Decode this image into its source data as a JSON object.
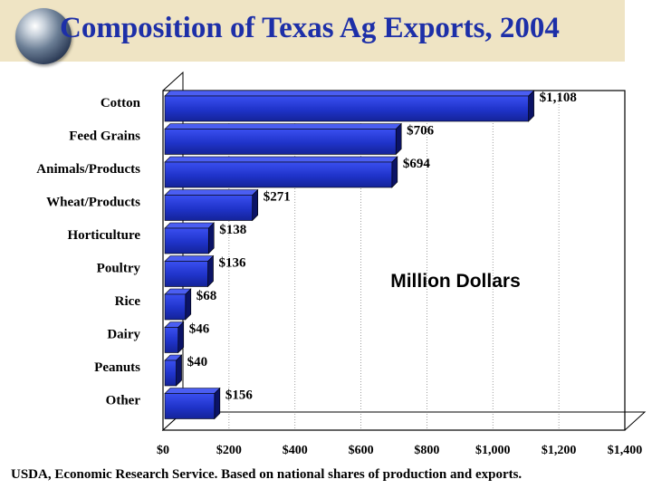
{
  "header": {
    "title": "Composition of Texas Ag Exports, 2004"
  },
  "chart_data": {
    "type": "bar",
    "orientation": "horizontal",
    "title": "Composition of Texas Ag Exports, 2004",
    "unit_label": "Million Dollars",
    "categories": [
      "Cotton",
      "Feed Grains",
      "Animals/Products",
      "Wheat/Products",
      "Horticulture",
      "Poultry",
      "Rice",
      "Dairy",
      "Peanuts",
      "Other"
    ],
    "values": [
      1108,
      706,
      694,
      271,
      138,
      136,
      68,
      46,
      40,
      156
    ],
    "value_labels": [
      "$1,108",
      "$706",
      "$694",
      "$271",
      "$138",
      "$136",
      "$68",
      "$46",
      "$40",
      "$156"
    ],
    "xlim": [
      0,
      1400
    ],
    "x_ticks": [
      0,
      200,
      400,
      600,
      800,
      1000,
      1200,
      1400
    ],
    "x_tick_labels": [
      "$0",
      "$200",
      "$400",
      "$600",
      "$800",
      "$1,000",
      "$1,200",
      "$1,400"
    ],
    "grid": "vertical dotted lines",
    "bar_color": "#1f33c9"
  },
  "footer": {
    "source": "USDA, Economic Research Service.  Based on national shares of production and exports."
  }
}
